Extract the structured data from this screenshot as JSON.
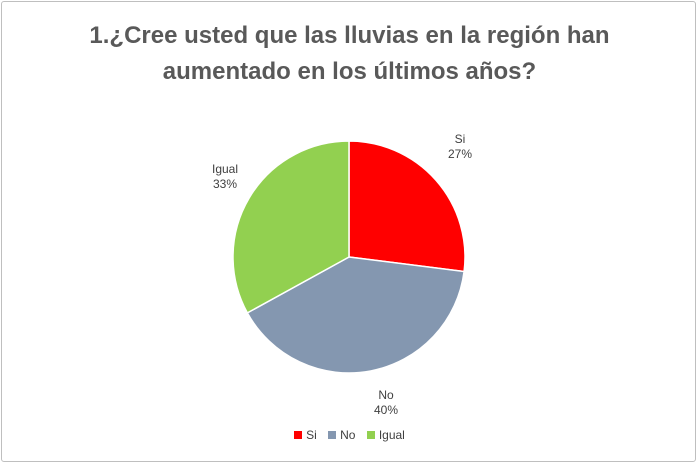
{
  "chart_data": {
    "type": "pie",
    "title_lines": [
      "1.¿Cree usted que las lluvias en la región han",
      "aumentado en los últimos años?"
    ],
    "slices": [
      {
        "label": "Si",
        "value": 27,
        "value_label": "27%",
        "color": "#ff0000"
      },
      {
        "label": "No",
        "value": 40,
        "value_label": "40%",
        "color": "#8497b0"
      },
      {
        "label": "Igual",
        "value": 33,
        "value_label": "33%",
        "color": "#92d050"
      }
    ],
    "legend": [
      "Si",
      "No",
      "Igual"
    ],
    "legend_position": "bottom"
  }
}
